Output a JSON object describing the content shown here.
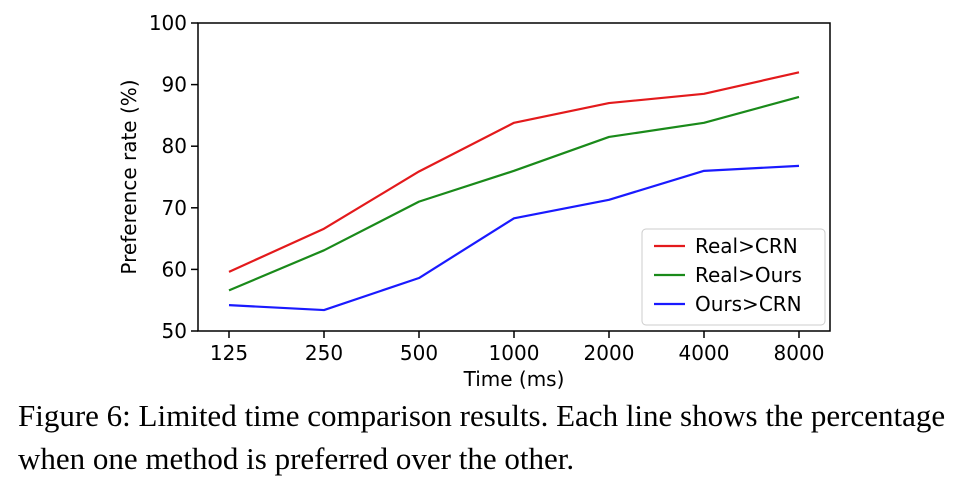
{
  "chart_data": {
    "type": "line",
    "categories": [
      "125",
      "250",
      "500",
      "1000",
      "2000",
      "4000",
      "8000"
    ],
    "x": [
      125,
      250,
      500,
      1000,
      2000,
      4000,
      8000
    ],
    "xscale": "log",
    "series": [
      {
        "name": "Real>CRN",
        "color": "#e31a1c",
        "values": [
          59.6,
          66.6,
          75.9,
          83.8,
          87.0,
          88.5,
          92.0
        ]
      },
      {
        "name": "Real>Ours",
        "color": "#1a8a1a",
        "values": [
          56.6,
          63.1,
          71.0,
          76.0,
          81.5,
          83.8,
          88.0
        ]
      },
      {
        "name": "Ours>CRN",
        "color": "#1a1aff",
        "values": [
          54.2,
          53.4,
          58.6,
          68.3,
          71.3,
          76.0,
          76.8
        ]
      }
    ],
    "yticks": [
      50,
      60,
      70,
      80,
      90,
      100
    ],
    "ylim": [
      50,
      100
    ],
    "xlabel": "Time (ms)",
    "ylabel": "Preference rate (%)",
    "grid": false,
    "legend_position": "bottom-right"
  },
  "caption": {
    "text": "Figure 6: Limited time comparison results. Each line shows the percentage when one method is preferred over the other."
  }
}
